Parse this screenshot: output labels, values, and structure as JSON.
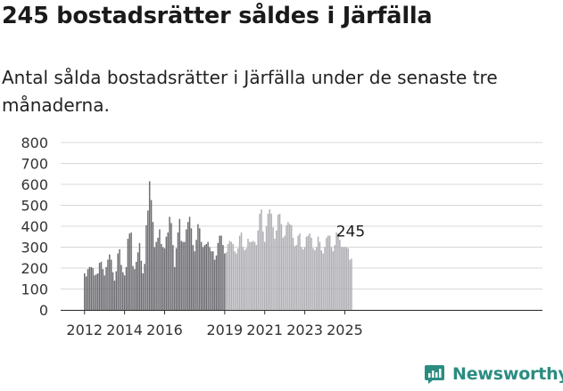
{
  "title": "245 bostadsrätter såldes i Järfälla",
  "subtitle": "Antal sålda bostadsrätter i Järfälla under de senaste tre månaderna.",
  "brand": {
    "name": "Newsworthy",
    "color": "#2b8c80",
    "icon": "newsworthy-logo-icon"
  },
  "chart_data": {
    "type": "bar",
    "title": "245 bostadsrätter såldes i Järfälla",
    "xlabel": "",
    "ylabel": "",
    "ylim": [
      0,
      800
    ],
    "yticks": [
      0,
      100,
      200,
      300,
      400,
      500,
      600,
      700,
      800
    ],
    "xticks": [
      {
        "label": "2012",
        "year": 2012
      },
      {
        "label": "2014",
        "year": 2014
      },
      {
        "label": "2016",
        "year": 2016
      },
      {
        "label": "2019",
        "year": 2019
      },
      {
        "label": "2021",
        "year": 2021
      },
      {
        "label": "2023",
        "year": 2023
      },
      {
        "label": "2025",
        "year": 2025
      }
    ],
    "start": "2012-01",
    "frequency": "monthly",
    "annotation": {
      "label": "245",
      "value": 245
    },
    "colors": {
      "older": "#6e6d72",
      "recent": "#b0afb4",
      "highlight": "#2b9a8f"
    },
    "recent_from_index": 85,
    "highlight_from_index": 163,
    "values": [
      175,
      160,
      195,
      205,
      205,
      200,
      165,
      170,
      175,
      225,
      230,
      195,
      165,
      205,
      240,
      265,
      240,
      180,
      140,
      185,
      270,
      290,
      215,
      180,
      165,
      205,
      340,
      365,
      370,
      210,
      195,
      230,
      275,
      320,
      235,
      175,
      220,
      405,
      475,
      615,
      525,
      420,
      300,
      325,
      345,
      385,
      315,
      300,
      295,
      350,
      370,
      445,
      415,
      310,
      205,
      295,
      370,
      435,
      330,
      325,
      325,
      385,
      420,
      445,
      390,
      310,
      280,
      335,
      410,
      390,
      325,
      300,
      310,
      315,
      325,
      300,
      280,
      280,
      240,
      260,
      320,
      355,
      355,
      310,
      270,
      275,
      315,
      330,
      325,
      315,
      280,
      270,
      295,
      355,
      370,
      300,
      285,
      295,
      340,
      325,
      325,
      330,
      325,
      310,
      380,
      460,
      480,
      375,
      325,
      400,
      460,
      480,
      460,
      395,
      340,
      380,
      455,
      460,
      410,
      345,
      355,
      405,
      420,
      410,
      405,
      345,
      305,
      310,
      355,
      365,
      300,
      290,
      300,
      350,
      355,
      365,
      345,
      295,
      285,
      300,
      350,
      325,
      285,
      270,
      300,
      345,
      355,
      355,
      300,
      280,
      310,
      370,
      365,
      335,
      300,
      300,
      300,
      300,
      295,
      240,
      245
    ]
  }
}
